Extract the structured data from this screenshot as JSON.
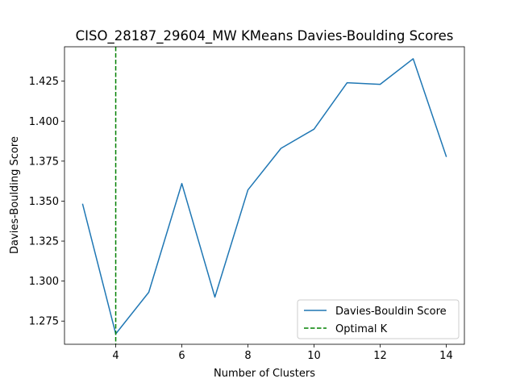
{
  "chart_data": {
    "type": "line",
    "title": "CISO_28187_29604_MW KMeans Davies-Boulding Scores",
    "xlabel": "Number of Clusters",
    "ylabel": "Davies-Boulding Score",
    "xlim": [
      2.45,
      14.55
    ],
    "ylim": [
      1.2605,
      1.4465
    ],
    "x_ticks": [
      4,
      6,
      8,
      10,
      12,
      14
    ],
    "x_tick_labels": [
      "4",
      "6",
      "8",
      "10",
      "12",
      "14"
    ],
    "y_ticks": [
      1.275,
      1.3,
      1.325,
      1.35,
      1.375,
      1.4,
      1.425
    ],
    "y_tick_labels": [
      "1.275",
      "1.300",
      "1.325",
      "1.350",
      "1.375",
      "1.400",
      "1.425"
    ],
    "grid": false,
    "legend_position": "lower right",
    "series": [
      {
        "name": "Davies-Bouldin Score",
        "color": "#1f77b4",
        "style": "solid",
        "x": [
          3,
          4,
          5,
          6,
          7,
          8,
          9,
          10,
          11,
          12,
          13,
          14
        ],
        "y": [
          1.348,
          1.267,
          1.293,
          1.361,
          1.29,
          1.357,
          1.383,
          1.395,
          1.424,
          1.423,
          1.439,
          1.378
        ]
      }
    ],
    "vlines": [
      {
        "name": "Optimal K",
        "x": 4,
        "color": "#008000",
        "style": "dashed"
      }
    ]
  }
}
